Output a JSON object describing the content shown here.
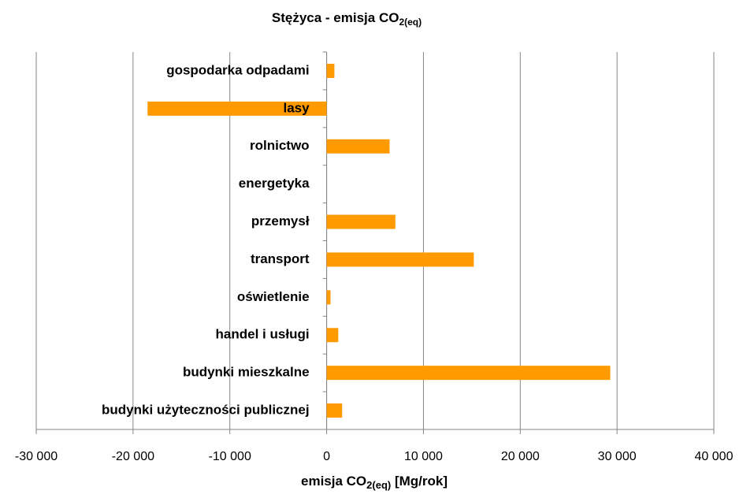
{
  "chart_data": {
    "type": "barh",
    "title": {
      "text": "Stężyca - emisja CO",
      "subscript": "2(eq)"
    },
    "x_label": {
      "text": "emisja CO",
      "subscript": "2(eq)",
      "suffix": " [Mg/rok]"
    },
    "categories": [
      "gospodarka odpadami",
      "lasy",
      "rolnictwo",
      "energetyka",
      "przemysł",
      "transport",
      "oświetlenie",
      "handel i usługi",
      "budynki mieszkalne",
      "budynki użyteczności publicznej"
    ],
    "values": [
      800,
      -18500,
      6500,
      0,
      7100,
      15200,
      400,
      1200,
      29300,
      1600
    ],
    "color": "#ff9a00",
    "xlim": [
      -30000,
      40000
    ],
    "xticks": [
      {
        "value": -30000,
        "label": "-30 000"
      },
      {
        "value": -20000,
        "label": "-20 000"
      },
      {
        "value": -10000,
        "label": "-10 000"
      },
      0,
      {
        "value": 10000,
        "label": "10 000"
      },
      {
        "value": 20000,
        "label": "20 000"
      },
      {
        "value": 30000,
        "label": "30 000"
      },
      {
        "value": 40000,
        "label": "40 000"
      }
    ],
    "grid": true
  }
}
